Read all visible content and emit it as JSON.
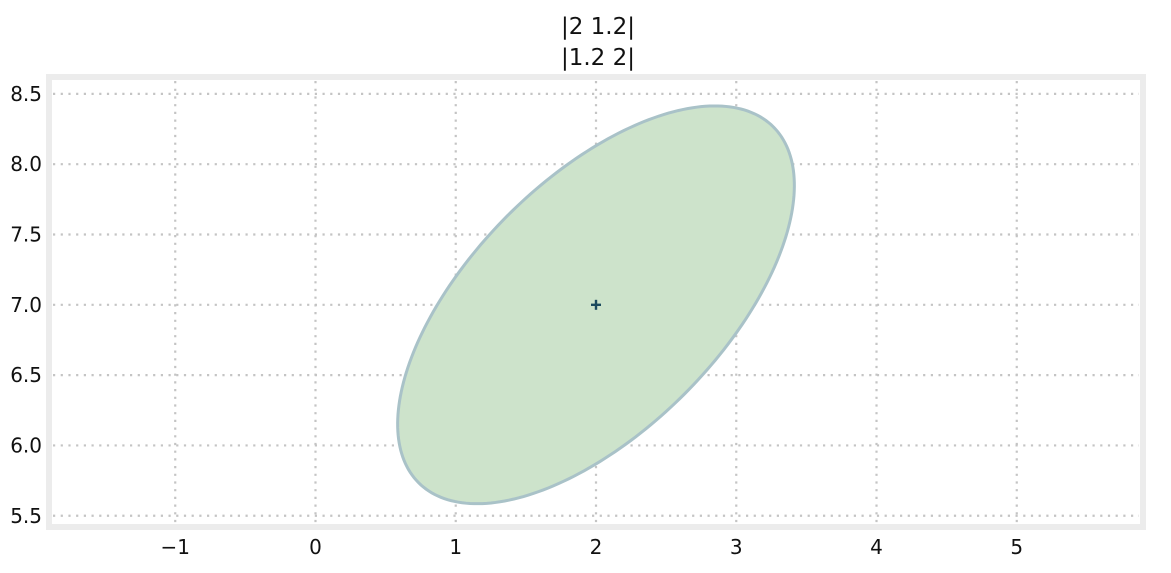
{
  "chart_data": {
    "type": "ellipse",
    "title": [
      "|2 1.2|",
      "|1.2 2|"
    ],
    "xlabel": "",
    "ylabel": "",
    "xlim": [
      -1.9,
      5.9
    ],
    "ylim": [
      5.42,
      8.62
    ],
    "x_ticks": [
      -1,
      0,
      1,
      2,
      3,
      4,
      5
    ],
    "x_tick_labels": [
      "−1",
      "0",
      "1",
      "2",
      "3",
      "4",
      "5"
    ],
    "y_ticks": [
      5.5,
      6.0,
      6.5,
      7.0,
      7.5,
      8.0,
      8.5
    ],
    "y_tick_labels": [
      "5.5",
      "6.0",
      "6.5",
      "7.0",
      "7.5",
      "8.0",
      "8.5"
    ],
    "grid": true,
    "mean": [
      2,
      7
    ],
    "covariance": [
      [
        2,
        1.2
      ],
      [
        1.2,
        2
      ]
    ],
    "ellipse": {
      "center": [
        2,
        7
      ],
      "x_extent": [
        0.59,
        3.41
      ],
      "y_extent": [
        5.59,
        8.41
      ],
      "fill_color": "#cde3cb",
      "edge_color": "#a9c2c8"
    },
    "marker": {
      "symbol": "+",
      "color": "#1b4a5e"
    },
    "colors": {
      "frame": "#ececec",
      "grid": "#c4c4c4",
      "text": "#111111"
    }
  }
}
